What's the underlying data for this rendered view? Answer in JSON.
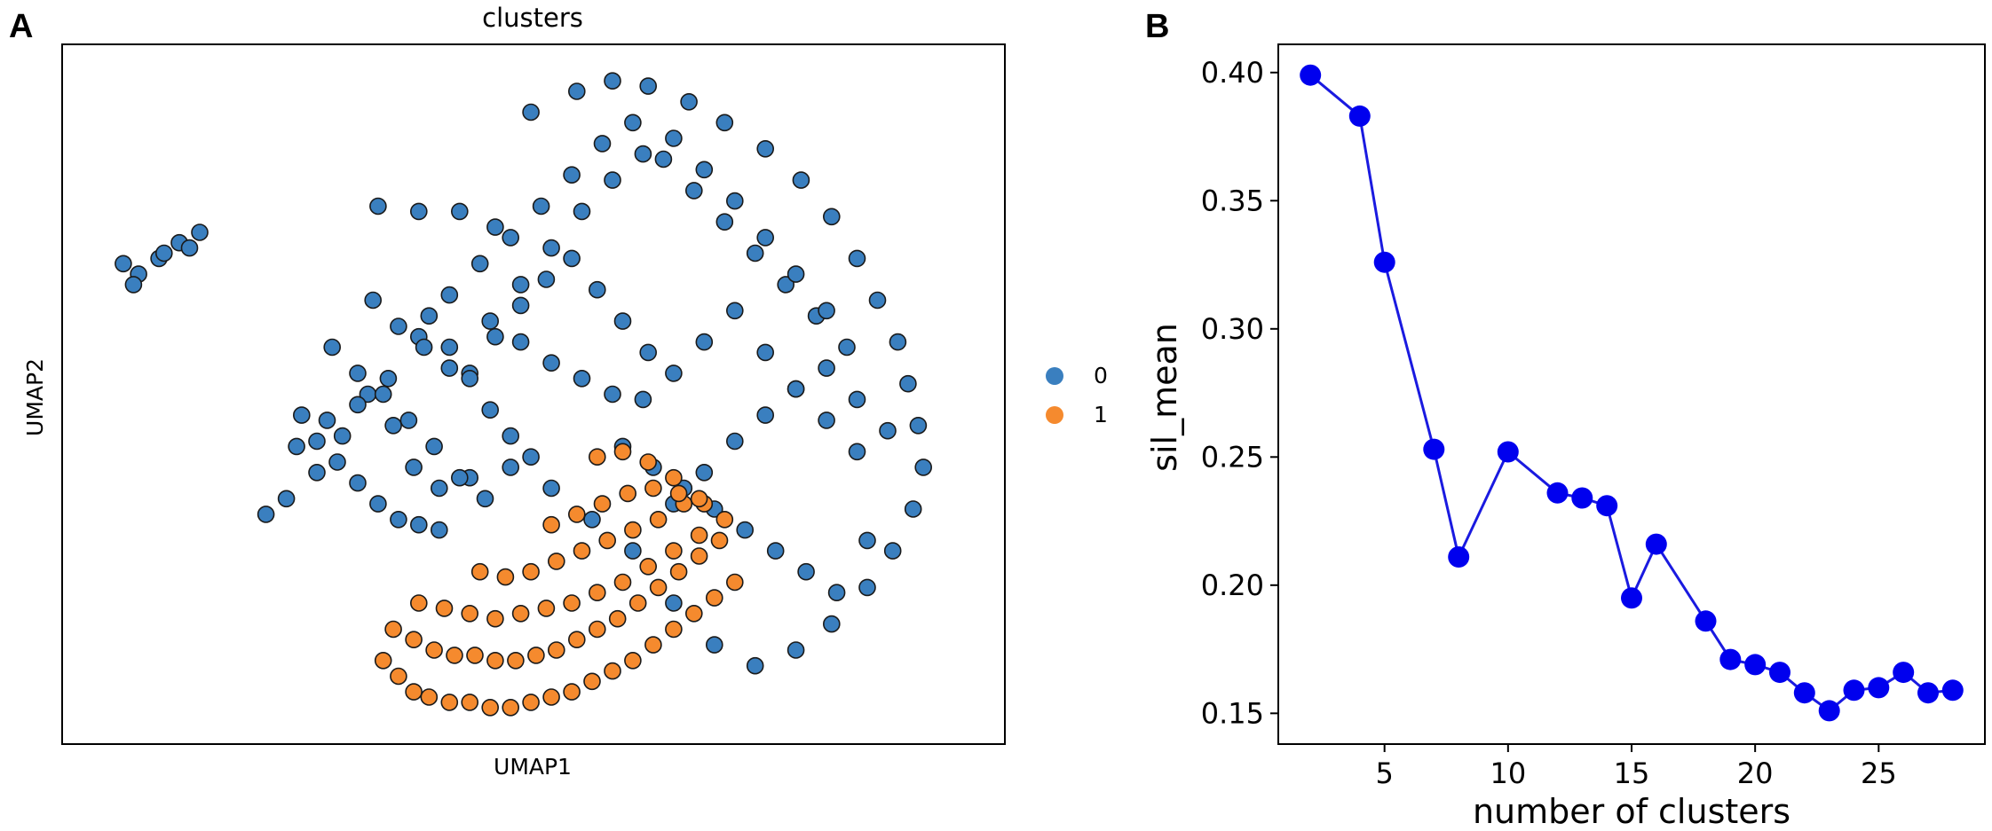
{
  "panels": {
    "a_letter": "A",
    "b_letter": "B"
  },
  "chart_data": [
    {
      "type": "scatter",
      "title": "clusters",
      "xlabel": "UMAP1",
      "ylabel": "UMAP2",
      "grid": false,
      "legend": {
        "placement": "right",
        "entries": [
          {
            "label": "0",
            "color": "#3a7fbf"
          },
          {
            "label": "1",
            "color": "#f58a2e"
          }
        ]
      },
      "series": [
        {
          "name": "0",
          "color": "#3a7fbf",
          "x": [
            1.2,
            1.5,
            1.9,
            2.3,
            2.7,
            1.4,
            2.0,
            2.5,
            6.2,
            7.0,
            7.8,
            8.5,
            9.2,
            10.1,
            10.8,
            11.5,
            12.3,
            13.0,
            13.8,
            14.5,
            15.1,
            15.6,
            16.0,
            16.4,
            16.6,
            16.8,
            16.9,
            16.7,
            16.3,
            15.8,
            15.1,
            14.4,
            13.6,
            12.8,
            12.0,
            11.2,
            10.4,
            9.6,
            8.8,
            8.0,
            7.4,
            6.9,
            6.5,
            6.0,
            5.5,
            5.0,
            4.4,
            4.0,
            4.6,
            5.2,
            5.8,
            6.4,
            7.0,
            7.6,
            8.2,
            8.8,
            9.4,
            10.0,
            10.6,
            11.2,
            11.8,
            12.4,
            13.0,
            13.6,
            14.2,
            14.8,
            15.4,
            9.0,
            9.6,
            10.2,
            10.8,
            11.4,
            12.0,
            12.6,
            13.2,
            13.8,
            14.4,
            15.0,
            8.4,
            9.0,
            9.6,
            10.2,
            10.8,
            11.4,
            12.0,
            12.6,
            13.2,
            13.8,
            14.4,
            15.0,
            15.6,
            11.0,
            11.6,
            12.2,
            12.8,
            13.4,
            14.0,
            14.6,
            15.2,
            15.8,
            12.0,
            12.6,
            13.2,
            13.8,
            14.4,
            15.0,
            15.6,
            16.2,
            8.0,
            8.5,
            9.0,
            9.5,
            10.0,
            10.5,
            11.0,
            11.5,
            7.2,
            7.6,
            8.0,
            8.4,
            8.8,
            9.2,
            5.3,
            5.8,
            6.3,
            6.8,
            7.3,
            7.8,
            8.3,
            4.7,
            5.0,
            5.4,
            5.8,
            6.2,
            6.6,
            7.0,
            7.4,
            6.1,
            6.6,
            7.1,
            7.6
          ],
          "y": [
            14.5,
            14.3,
            14.6,
            14.9,
            15.1,
            14.1,
            14.7,
            14.8,
            15.6,
            15.5,
            15.5,
            15.2,
            17.4,
            17.8,
            18.0,
            17.9,
            17.6,
            17.2,
            16.7,
            16.1,
            15.4,
            14.6,
            13.8,
            13.0,
            12.2,
            11.4,
            10.6,
            9.8,
            9.0,
            8.3,
            7.6,
            7.1,
            6.8,
            7.2,
            8.0,
            9.0,
            9.6,
            10.2,
            10.6,
            10.4,
            10.2,
            10.6,
            11.4,
            12.0,
            11.2,
            10.5,
            10.0,
            9.7,
            11.0,
            11.5,
            11.8,
            12.3,
            13.1,
            13.9,
            14.5,
            15.0,
            15.6,
            16.2,
            16.8,
            17.2,
            16.5,
            15.9,
            15.3,
            14.7,
            14.1,
            13.5,
            12.9,
            14.1,
            14.8,
            15.5,
            16.1,
            16.6,
            16.9,
            16.3,
            15.7,
            15.0,
            14.3,
            13.6,
            13.4,
            13.0,
            12.6,
            12.3,
            12.0,
            11.9,
            12.4,
            13.0,
            13.6,
            12.8,
            12.1,
            11.5,
            10.9,
            11.0,
            10.6,
            10.2,
            9.8,
            9.4,
            9.0,
            8.6,
            8.2,
            9.2,
            9.9,
            10.5,
            11.1,
            11.6,
            12.1,
            12.5,
            11.9,
            11.3,
            12.4,
            13.1,
            13.7,
            14.2,
            14.6,
            14.0,
            13.4,
            12.8,
            13.5,
            12.9,
            12.3,
            11.7,
            11.2,
            10.8,
            12.9,
            12.4,
            12.0,
            11.5,
            11.0,
            10.4,
            10.0,
            11.6,
            11.1,
            10.7,
            10.3,
            9.9,
            9.6,
            9.5,
            9.4,
            13.8,
            13.3,
            12.9,
            12.5
          ]
        },
        {
          "name": "1",
          "color": "#f58a2e",
          "x": [
            6.3,
            6.6,
            6.9,
            7.2,
            7.6,
            8.0,
            8.4,
            8.8,
            9.2,
            9.6,
            10.0,
            10.4,
            10.8,
            11.2,
            11.6,
            12.0,
            12.4,
            12.8,
            13.2,
            6.5,
            6.9,
            7.3,
            7.7,
            8.1,
            8.5,
            8.9,
            9.3,
            9.7,
            10.1,
            10.5,
            10.9,
            11.3,
            11.7,
            12.1,
            12.5,
            12.9,
            7.0,
            7.5,
            8.0,
            8.5,
            9.0,
            9.5,
            10.0,
            10.5,
            11.0,
            11.5,
            12.0,
            12.5,
            8.2,
            8.7,
            9.2,
            9.7,
            10.2,
            10.7,
            11.2,
            11.7,
            12.2,
            9.6,
            10.1,
            10.6,
            11.1,
            11.6,
            12.1,
            12.6,
            10.5,
            11.0,
            11.5,
            12.0,
            12.5,
            13.0
          ],
          "y": [
            6.9,
            6.6,
            6.3,
            6.2,
            6.1,
            6.1,
            6.0,
            6.0,
            6.1,
            6.2,
            6.3,
            6.5,
            6.7,
            6.9,
            7.2,
            7.5,
            7.8,
            8.1,
            8.4,
            7.5,
            7.3,
            7.1,
            7.0,
            7.0,
            6.9,
            6.9,
            7.0,
            7.1,
            7.3,
            7.5,
            7.7,
            8.0,
            8.3,
            8.6,
            8.9,
            9.2,
            8.0,
            7.9,
            7.8,
            7.7,
            7.8,
            7.9,
            8.0,
            8.2,
            8.4,
            8.7,
            9.0,
            9.3,
            8.6,
            8.5,
            8.6,
            8.8,
            9.0,
            9.2,
            9.4,
            9.6,
            9.9,
            9.5,
            9.7,
            9.9,
            10.1,
            10.2,
            10.1,
            9.9,
            10.8,
            10.9,
            10.7,
            10.4,
            10.0,
            9.6
          ]
        }
      ]
    },
    {
      "type": "line",
      "xlabel": "number of clusters",
      "ylabel": "sil_mean",
      "grid": false,
      "xlim": [
        0.7,
        29.3
      ],
      "ylim": [
        0.138,
        0.411
      ],
      "xticks": [
        5,
        10,
        15,
        20,
        25
      ],
      "yticks": [
        0.15,
        0.2,
        0.25,
        0.3,
        0.35,
        0.4
      ],
      "ytick_labels": [
        "0.15",
        "0.20",
        "0.25",
        "0.30",
        "0.35",
        "0.40"
      ],
      "marker": "circle",
      "line_color": "#1a1ae0",
      "marker_color": "#0000ee",
      "x": [
        2,
        4,
        5,
        7,
        8,
        10,
        12,
        13,
        14,
        15,
        16,
        18,
        19,
        20,
        21,
        22,
        23,
        24,
        25,
        26,
        27,
        28
      ],
      "y": [
        0.399,
        0.383,
        0.326,
        0.253,
        0.211,
        0.252,
        0.236,
        0.234,
        0.231,
        0.195,
        0.216,
        0.186,
        0.171,
        0.169,
        0.166,
        0.158,
        0.151,
        0.159,
        0.16,
        0.166,
        0.158,
        0.159
      ]
    }
  ]
}
